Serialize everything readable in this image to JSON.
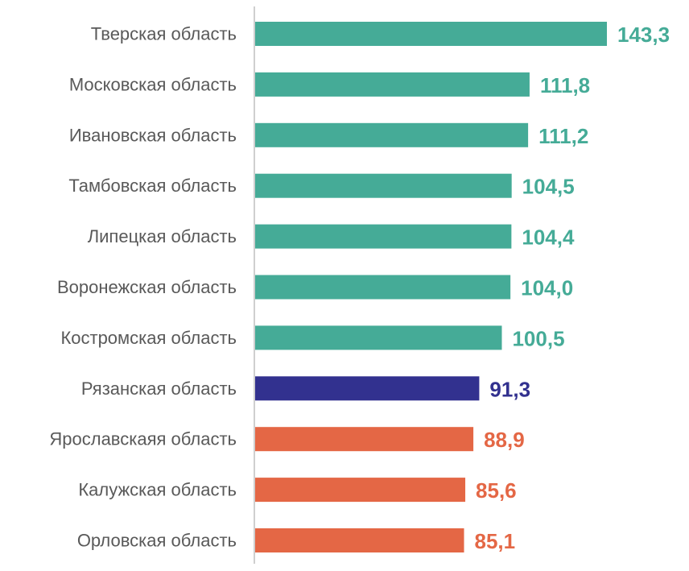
{
  "chart_data": {
    "type": "bar",
    "orientation": "horizontal",
    "categories": [
      "Тверская область",
      "Московская область",
      "Ивановская область",
      "Тамбовская область",
      "Липецкая область",
      "Воронежская область",
      "Костромская область",
      "Рязанская область",
      "Ярославскаяя область",
      "Калужская область",
      "Орловская область"
    ],
    "values": [
      143.3,
      111.8,
      111.2,
      104.5,
      104.4,
      104.0,
      100.5,
      91.3,
      88.9,
      85.6,
      85.1
    ],
    "value_labels": [
      "143,3",
      "111,8",
      "111,2",
      "104,5",
      "104,4",
      "104,0",
      "100,5",
      "91,3",
      "88,9",
      "85,6",
      "85,1"
    ],
    "bar_colors": [
      "#45AB97",
      "#45AB97",
      "#45AB97",
      "#45AB97",
      "#45AB97",
      "#45AB97",
      "#45AB97",
      "#32318F",
      "#E46745",
      "#E46745",
      "#E46745"
    ],
    "title": "",
    "xlabel": "",
    "ylabel": "",
    "grid": false,
    "legend": "none"
  }
}
